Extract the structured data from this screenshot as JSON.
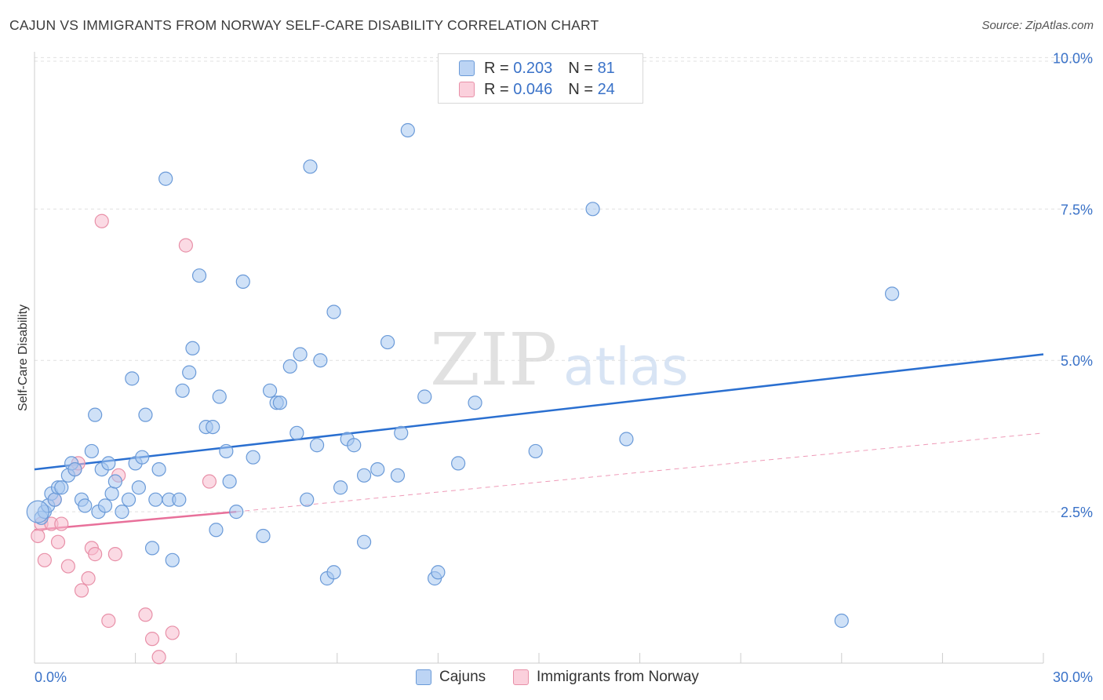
{
  "title": "CAJUN VS IMMIGRANTS FROM NORWAY SELF-CARE DISABILITY CORRELATION CHART",
  "source": "Source: ZipAtlas.com",
  "watermark": {
    "zip": "ZIP",
    "atlas": "atlas"
  },
  "legend": {
    "rows": [
      {
        "r_label": "R =",
        "r_value": "0.203",
        "n_label": "N =",
        "n_value": "81"
      },
      {
        "r_label": "R =",
        "r_value": "0.046",
        "n_label": "N =",
        "n_value": "24"
      }
    ]
  },
  "bottom_legend": {
    "cajuns": "Cajuns",
    "norway": "Immigrants from Norway"
  },
  "colors": {
    "cajun_fill": "#a8c8f0",
    "cajun_stroke": "#6a9ad8",
    "cajun_line": "#2a6fd0",
    "norway_fill": "#f8bccd",
    "norway_stroke": "#e890a8",
    "norway_line": "#e8709a",
    "tick_label": "#3a72c8",
    "grid": "#e0e0e0"
  },
  "chart_data": {
    "type": "scatter",
    "title": "CAJUN VS IMMIGRANTS FROM NORWAY SELF-CARE DISABILITY CORRELATION CHART",
    "xlabel": "",
    "ylabel": "Self-Care Disability",
    "xlim": [
      0,
      30
    ],
    "ylim": [
      0,
      10.2
    ],
    "x_tick_labels": [
      "0.0%",
      "30.0%"
    ],
    "y_ticks": [
      2.5,
      5.0,
      7.5,
      10.0
    ],
    "y_tick_labels": [
      "2.5%",
      "5.0%",
      "7.5%",
      "10.0%"
    ],
    "grid": true,
    "series": [
      {
        "name": "Cajuns",
        "r": 0.203,
        "n": 81,
        "trend": {
          "x": [
            0,
            30
          ],
          "y": [
            3.2,
            5.1
          ]
        },
        "points": [
          [
            0.2,
            2.4
          ],
          [
            0.3,
            2.5
          ],
          [
            0.4,
            2.6
          ],
          [
            0.5,
            2.8
          ],
          [
            0.6,
            2.7
          ],
          [
            0.7,
            2.9
          ],
          [
            0.8,
            2.9
          ],
          [
            1.0,
            3.1
          ],
          [
            1.1,
            3.3
          ],
          [
            1.2,
            3.2
          ],
          [
            1.4,
            2.7
          ],
          [
            1.5,
            2.6
          ],
          [
            1.7,
            3.5
          ],
          [
            1.8,
            4.1
          ],
          [
            1.9,
            2.5
          ],
          [
            2.0,
            3.2
          ],
          [
            2.1,
            2.6
          ],
          [
            2.2,
            3.3
          ],
          [
            2.3,
            2.8
          ],
          [
            2.4,
            3.0
          ],
          [
            2.6,
            2.5
          ],
          [
            2.8,
            2.7
          ],
          [
            2.9,
            4.7
          ],
          [
            3.0,
            3.3
          ],
          [
            3.1,
            2.9
          ],
          [
            3.2,
            3.4
          ],
          [
            3.3,
            4.1
          ],
          [
            3.5,
            1.9
          ],
          [
            3.6,
            2.7
          ],
          [
            3.7,
            3.2
          ],
          [
            3.9,
            8.0
          ],
          [
            4.0,
            2.7
          ],
          [
            4.1,
            1.7
          ],
          [
            4.3,
            2.7
          ],
          [
            4.4,
            4.5
          ],
          [
            4.6,
            4.8
          ],
          [
            4.7,
            5.2
          ],
          [
            4.9,
            6.4
          ],
          [
            5.1,
            3.9
          ],
          [
            5.3,
            3.9
          ],
          [
            5.4,
            2.2
          ],
          [
            5.5,
            4.4
          ],
          [
            5.7,
            3.5
          ],
          [
            5.8,
            3.0
          ],
          [
            6.0,
            2.5
          ],
          [
            6.2,
            6.3
          ],
          [
            6.5,
            3.4
          ],
          [
            6.8,
            2.1
          ],
          [
            7.0,
            4.5
          ],
          [
            7.2,
            4.3
          ],
          [
            7.3,
            4.3
          ],
          [
            7.6,
            4.9
          ],
          [
            7.8,
            3.8
          ],
          [
            7.9,
            5.1
          ],
          [
            8.1,
            2.7
          ],
          [
            8.2,
            8.2
          ],
          [
            8.4,
            3.6
          ],
          [
            8.5,
            5.0
          ],
          [
            8.7,
            1.4
          ],
          [
            8.9,
            1.5
          ],
          [
            8.9,
            5.8
          ],
          [
            9.1,
            2.9
          ],
          [
            9.3,
            3.7
          ],
          [
            9.5,
            3.6
          ],
          [
            9.8,
            2.0
          ],
          [
            9.8,
            3.1
          ],
          [
            10.2,
            3.2
          ],
          [
            10.5,
            5.3
          ],
          [
            10.8,
            3.1
          ],
          [
            10.9,
            3.8
          ],
          [
            11.1,
            8.8
          ],
          [
            11.6,
            4.4
          ],
          [
            11.9,
            1.4
          ],
          [
            12.0,
            1.5
          ],
          [
            12.6,
            3.3
          ],
          [
            13.1,
            4.3
          ],
          [
            14.9,
            3.5
          ],
          [
            16.6,
            7.5
          ],
          [
            17.6,
            3.7
          ],
          [
            24.0,
            0.7
          ],
          [
            25.5,
            6.1
          ]
        ]
      },
      {
        "name": "Immigrants from Norway",
        "r": 0.046,
        "n": 24,
        "trend": {
          "x": [
            0,
            6.0
          ],
          "y": [
            2.2,
            2.5
          ]
        },
        "trend_extension": {
          "x": [
            6.0,
            30
          ],
          "y": [
            2.5,
            3.8
          ]
        },
        "points": [
          [
            0.1,
            2.1
          ],
          [
            0.2,
            2.3
          ],
          [
            0.3,
            1.7
          ],
          [
            0.5,
            2.3
          ],
          [
            0.6,
            2.7
          ],
          [
            0.7,
            2.0
          ],
          [
            1.0,
            1.6
          ],
          [
            1.2,
            3.2
          ],
          [
            1.3,
            3.3
          ],
          [
            1.4,
            1.2
          ],
          [
            1.6,
            1.4
          ],
          [
            1.7,
            1.9
          ],
          [
            1.8,
            1.8
          ],
          [
            2.0,
            7.3
          ],
          [
            2.2,
            0.7
          ],
          [
            2.4,
            1.8
          ],
          [
            2.5,
            3.1
          ],
          [
            3.3,
            0.8
          ],
          [
            3.5,
            0.4
          ],
          [
            3.7,
            0.1
          ],
          [
            4.1,
            0.5
          ],
          [
            4.5,
            6.9
          ],
          [
            5.2,
            3.0
          ],
          [
            0.8,
            2.3
          ]
        ]
      }
    ]
  }
}
